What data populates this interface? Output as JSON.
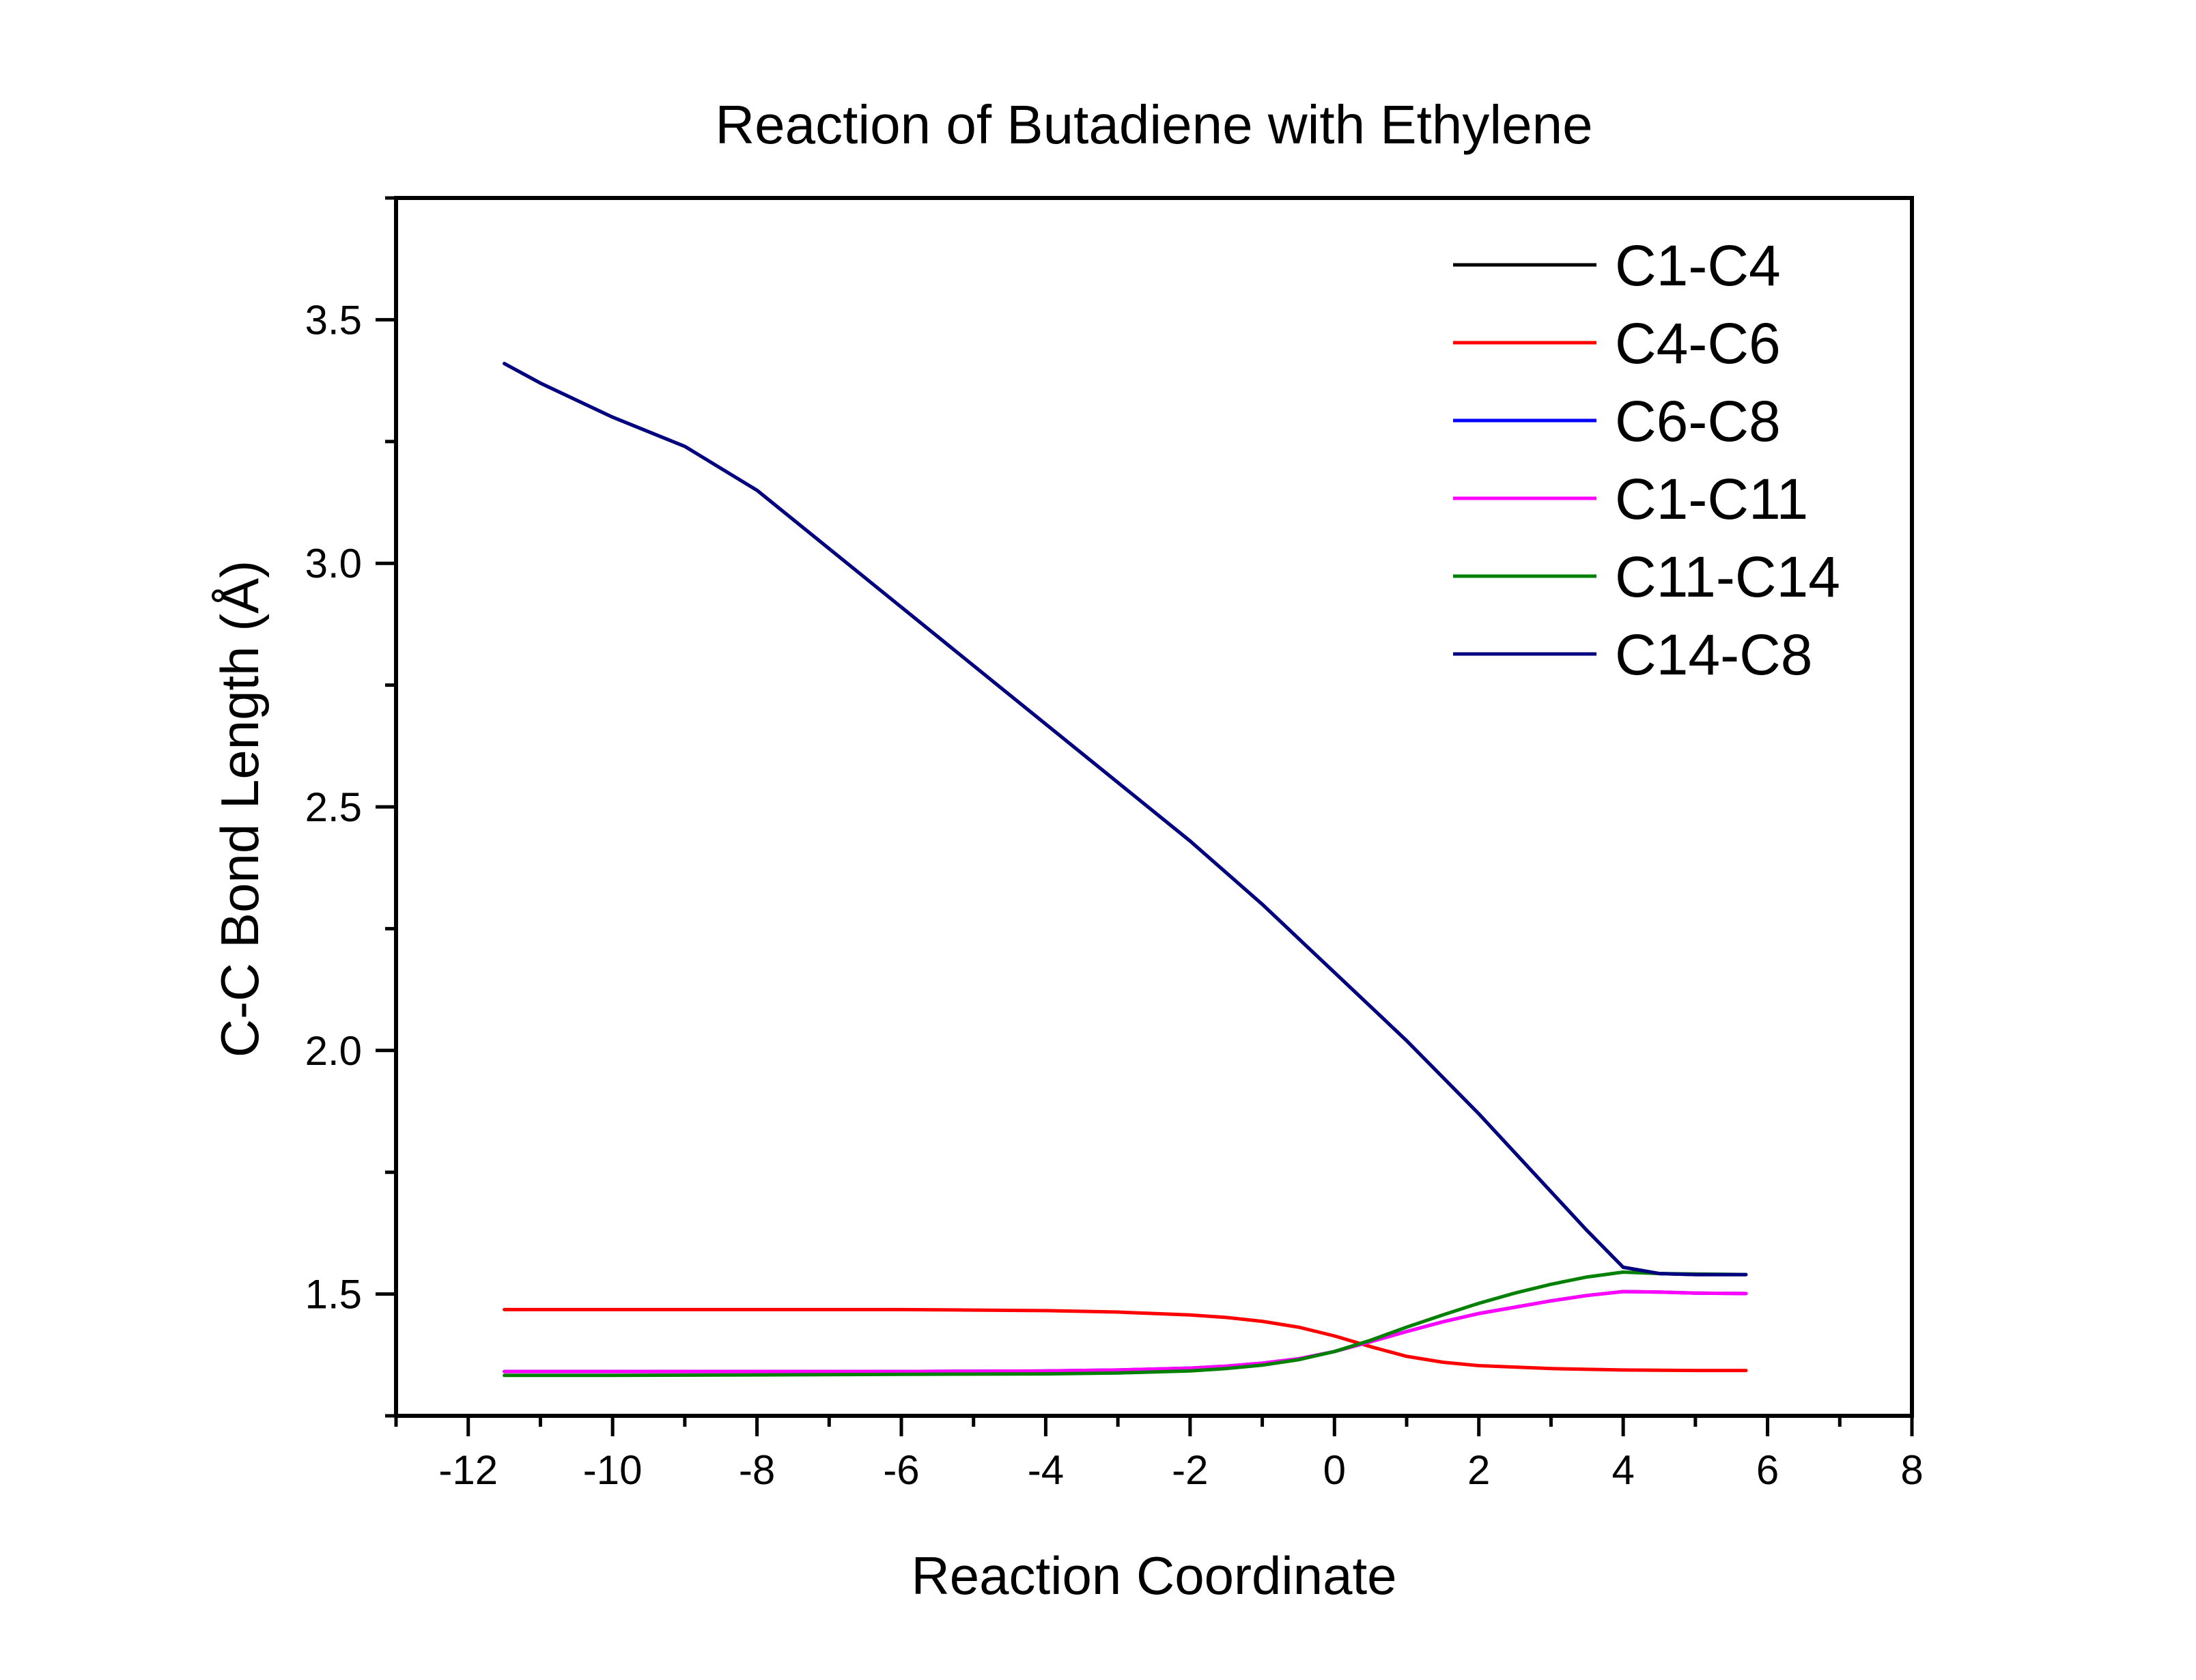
{
  "chart_data": {
    "type": "line",
    "title": "Reaction of Butadiene with Ethylene",
    "xlabel": "Reaction Coordinate",
    "ylabel": "C-C Bond Length (Å)",
    "xlim": [
      -13,
      8
    ],
    "ylim": [
      1.25,
      3.75
    ],
    "xticks": [
      -12,
      -10,
      -8,
      -6,
      -4,
      -2,
      0,
      2,
      4,
      6,
      8
    ],
    "xtick_labels": [
      "-12",
      "-10",
      "-8",
      "-6",
      "-4",
      "-2",
      "0",
      "2",
      "4",
      "6",
      "8"
    ],
    "yticks": [
      1.5,
      2.0,
      2.5,
      3.0,
      3.5
    ],
    "ytick_labels": [
      "1.5",
      "2.0",
      "2.5",
      "3.0",
      "3.5"
    ],
    "grid": false,
    "legend_position": "top-right",
    "series": [
      {
        "name": "C1-C4",
        "color": "#000000",
        "x": [
          -11.5,
          -11,
          -10,
          -9,
          -8,
          -7,
          -6,
          -5,
          -4,
          -3,
          -2,
          -1,
          0,
          1,
          2,
          3,
          3.5,
          4,
          4.5,
          5,
          5.7
        ],
        "y": [
          3.41,
          3.37,
          3.3,
          3.24,
          3.15,
          3.03,
          2.91,
          2.79,
          2.67,
          2.55,
          2.43,
          2.3,
          2.16,
          2.02,
          1.87,
          1.71,
          1.63,
          1.555,
          1.542,
          1.54,
          1.54
        ]
      },
      {
        "name": "C4-C6",
        "color": "#ff0000",
        "x": [
          -11.5,
          -10,
          -8,
          -6,
          -5,
          -4,
          -3,
          -2,
          -1.5,
          -1,
          -0.5,
          0,
          0.5,
          1,
          1.5,
          2,
          3,
          4,
          5,
          5.7
        ],
        "y": [
          1.468,
          1.468,
          1.468,
          1.468,
          1.467,
          1.466,
          1.463,
          1.457,
          1.452,
          1.444,
          1.432,
          1.414,
          1.392,
          1.372,
          1.36,
          1.353,
          1.347,
          1.344,
          1.343,
          1.343
        ]
      },
      {
        "name": "C6-C8",
        "color": "#0000ff",
        "x": [
          -11.5,
          -10,
          -8,
          -6,
          -4,
          -3,
          -2,
          -1.5,
          -1,
          -0.5,
          0,
          0.5,
          1,
          1.5,
          2,
          2.5,
          3,
          3.5,
          4,
          4.5,
          5,
          5.7
        ],
        "y": [
          1.341,
          1.341,
          1.341,
          1.341,
          1.342,
          1.344,
          1.348,
          1.352,
          1.358,
          1.367,
          1.382,
          1.402,
          1.423,
          1.443,
          1.46,
          1.473,
          1.486,
          1.497,
          1.505,
          1.504,
          1.502,
          1.501
        ]
      },
      {
        "name": "C1-C11",
        "color": "#ff00ff",
        "x": [
          -11.5,
          -10,
          -8,
          -6,
          -4,
          -3,
          -2,
          -1.5,
          -1,
          -0.5,
          0,
          0.5,
          1,
          1.5,
          2,
          2.5,
          3,
          3.5,
          4,
          4.5,
          5,
          5.7
        ],
        "y": [
          1.341,
          1.341,
          1.341,
          1.341,
          1.342,
          1.344,
          1.348,
          1.352,
          1.358,
          1.367,
          1.382,
          1.402,
          1.423,
          1.443,
          1.46,
          1.473,
          1.486,
          1.497,
          1.505,
          1.504,
          1.502,
          1.501
        ]
      },
      {
        "name": "C11-C14",
        "color": "#008000",
        "x": [
          -11.5,
          -10,
          -8,
          -6,
          -4,
          -3,
          -2,
          -1.5,
          -1,
          -0.5,
          0,
          0.5,
          1,
          1.5,
          2,
          2.5,
          3,
          3.5,
          4,
          4.5,
          5,
          5.7
        ],
        "y": [
          1.333,
          1.333,
          1.334,
          1.335,
          1.336,
          1.338,
          1.342,
          1.347,
          1.354,
          1.365,
          1.382,
          1.405,
          1.432,
          1.457,
          1.481,
          1.502,
          1.52,
          1.535,
          1.545,
          1.542,
          1.541,
          1.54
        ]
      },
      {
        "name": "C14-C8",
        "color": "#000080",
        "x": [
          -11.5,
          -11,
          -10,
          -9,
          -8,
          -7,
          -6,
          -5,
          -4,
          -3,
          -2,
          -1,
          0,
          1,
          2,
          3,
          3.5,
          4,
          4.5,
          5,
          5.7
        ],
        "y": [
          3.41,
          3.37,
          3.3,
          3.24,
          3.15,
          3.03,
          2.91,
          2.79,
          2.67,
          2.55,
          2.43,
          2.3,
          2.16,
          2.02,
          1.87,
          1.71,
          1.63,
          1.555,
          1.542,
          1.54,
          1.54
        ]
      }
    ]
  }
}
